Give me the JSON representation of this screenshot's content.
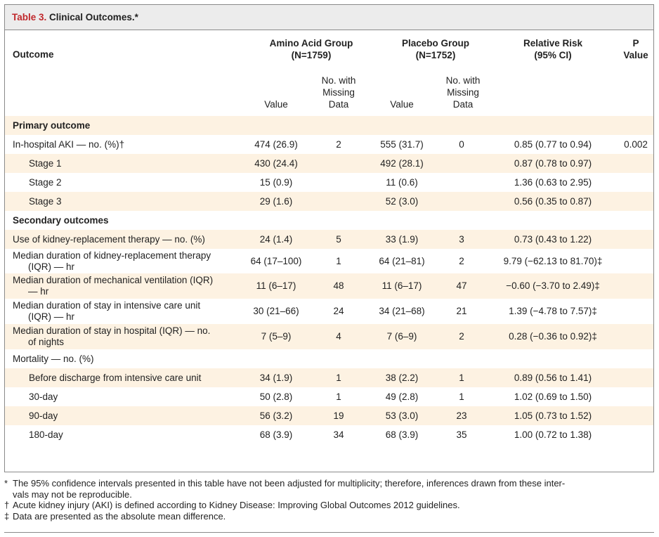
{
  "table": {
    "label": "Table 3.",
    "title": "Clinical Outcomes.*"
  },
  "header": {
    "outcome": "Outcome",
    "amino_group": "Amino Acid Group",
    "amino_n": "(N=1759)",
    "placebo_group": "Placebo Group",
    "placebo_n": "(N=1752)",
    "rr_line1": "Relative Risk",
    "rr_line2": "(95% CI)",
    "p_line1": "P",
    "p_line2": "Value",
    "value": "Value",
    "missing_line1": "No. with",
    "missing_line2": "Missing",
    "missing_line3": "Data"
  },
  "rows": [
    {
      "type": "section",
      "label": "Primary outcome"
    },
    {
      "label": "In-hospital AKI — no. (%)†",
      "amino_value": "474 (26.9)",
      "amino_missing": "2",
      "placebo_value": "555 (31.7)",
      "placebo_missing": "0",
      "rr": "0.85 (0.77 to 0.94)",
      "p": "0.002"
    },
    {
      "indent": true,
      "label": "Stage 1",
      "amino_value": "430 (24.4)",
      "amino_missing": "",
      "placebo_value": "492 (28.1)",
      "placebo_missing": "",
      "rr": "0.87 (0.78 to 0.97)",
      "p": ""
    },
    {
      "indent": true,
      "label": "Stage 2",
      "amino_value": "15 (0.9)",
      "amino_missing": "",
      "placebo_value": "11 (0.6)",
      "placebo_missing": "",
      "rr": "1.36 (0.63 to 2.95)",
      "p": ""
    },
    {
      "indent": true,
      "label": "Stage 3",
      "amino_value": "29 (1.6)",
      "amino_missing": "",
      "placebo_value": "52 (3.0)",
      "placebo_missing": "",
      "rr": "0.56 (0.35 to 0.87)",
      "p": ""
    },
    {
      "type": "section",
      "label": "Secondary outcomes"
    },
    {
      "label": "Use of kidney-replacement therapy — no. (%)",
      "amino_value": "24 (1.4)",
      "amino_missing": "5",
      "placebo_value": "33 (1.9)",
      "placebo_missing": "3",
      "rr": "0.73 (0.43 to 1.22)",
      "p": ""
    },
    {
      "label": "Median duration of kidney-replacement therapy",
      "label2": "(IQR) — hr",
      "amino_value": "64 (17–100)",
      "amino_missing": "1",
      "placebo_value": "64 (21–81)",
      "placebo_missing": "2",
      "rr": "9.79 (−62.13 to 81.70)‡",
      "p": ""
    },
    {
      "label": "Median duration of mechanical ventilation (IQR)",
      "label2": "— hr",
      "amino_value": "11 (6–17)",
      "amino_missing": "48",
      "placebo_value": "11 (6–17)",
      "placebo_missing": "47",
      "rr": "−0.60 (−3.70 to 2.49)‡",
      "p": ""
    },
    {
      "label": "Median duration of stay in intensive care unit",
      "label2": "(IQR) — hr",
      "amino_value": "30 (21–66)",
      "amino_missing": "24",
      "placebo_value": "34 (21–68)",
      "placebo_missing": "21",
      "rr": "1.39 (−4.78 to 7.57)‡",
      "p": ""
    },
    {
      "label": "Median duration of stay in hospital (IQR) — no.",
      "label2": "of nights",
      "amino_value": "7 (5–9)",
      "amino_missing": "4",
      "placebo_value": "7 (6–9)",
      "placebo_missing": "2",
      "rr": "0.28 (−0.36 to 0.92)‡",
      "p": ""
    },
    {
      "label": "Mortality — no. (%)",
      "amino_value": "",
      "amino_missing": "",
      "placebo_value": "",
      "placebo_missing": "",
      "rr": "",
      "p": ""
    },
    {
      "indent": true,
      "label": "Before discharge from intensive care unit",
      "amino_value": "34 (1.9)",
      "amino_missing": "1",
      "placebo_value": "38 (2.2)",
      "placebo_missing": "1",
      "rr": "0.89 (0.56 to 1.41)",
      "p": ""
    },
    {
      "indent": true,
      "label": "30-day",
      "amino_value": "50 (2.8)",
      "amino_missing": "1",
      "placebo_value": "49 (2.8)",
      "placebo_missing": "1",
      "rr": "1.02 (0.69 to 1.50)",
      "p": ""
    },
    {
      "indent": true,
      "label": "90-day",
      "amino_value": "56 (3.2)",
      "amino_missing": "19",
      "placebo_value": "53 (3.0)",
      "placebo_missing": "23",
      "rr": "1.05 (0.73 to 1.52)",
      "p": ""
    },
    {
      "indent": true,
      "label": "180-day",
      "amino_value": "68 (3.9)",
      "amino_missing": "34",
      "placebo_value": "68 (3.9)",
      "placebo_missing": "35",
      "rr": "1.00 (0.72 to 1.38)",
      "p": ""
    }
  ],
  "footnotes": [
    {
      "symbol": "*",
      "text": "The 95% confidence intervals presented in this table have not been adjusted for multiplicity; therefore, inferences drawn from these inter-",
      "text2": "vals may not be reproducible."
    },
    {
      "symbol": "†",
      "text": "Acute kidney injury (AKI) is defined according to Kidney Disease: Improving Global Outcomes 2012 guidelines.",
      "text2": ""
    },
    {
      "symbol": "‡",
      "text": "Data are presented as the absolute mean difference.",
      "text2": ""
    }
  ]
}
